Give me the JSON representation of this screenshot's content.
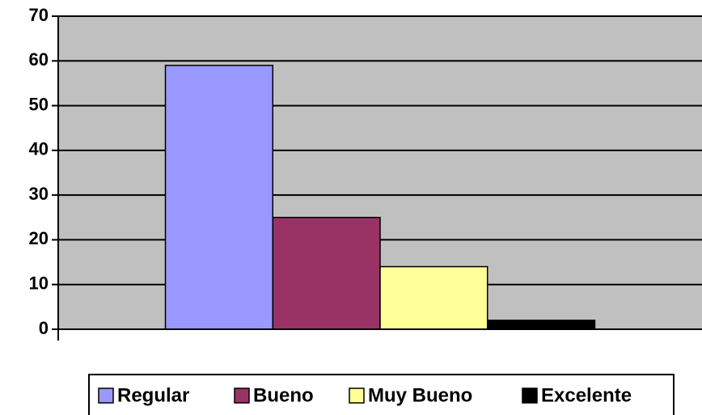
{
  "chart_data": {
    "type": "bar",
    "categories": [
      null
    ],
    "series": [
      {
        "name": "Regular",
        "color": "#9999ff",
        "values": [
          59
        ]
      },
      {
        "name": "Bueno",
        "color": "#993366",
        "values": [
          25
        ]
      },
      {
        "name": "Muy Bueno",
        "color": "#ffff99",
        "values": [
          14
        ]
      },
      {
        "name": "Excelente",
        "color": "#000000",
        "values": [
          2
        ]
      }
    ],
    "ylim": [
      0,
      70
    ],
    "yticks": [
      0,
      10,
      20,
      30,
      40,
      50,
      60,
      70
    ],
    "grid": true,
    "legend": "bottom"
  }
}
